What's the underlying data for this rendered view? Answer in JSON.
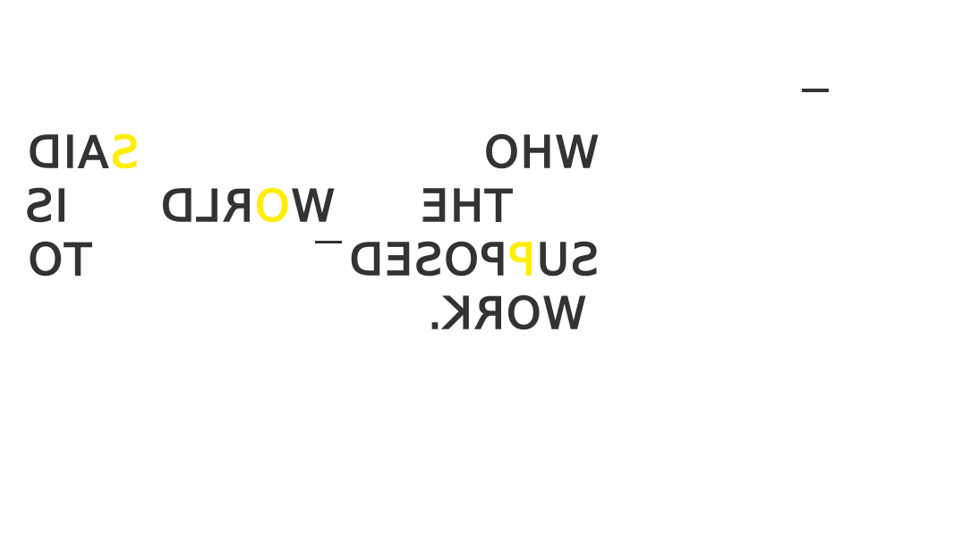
{
  "canvas": {
    "background": "#ffffff",
    "text_color": "#333333",
    "accent_color": "#ffee00",
    "mirrored": true
  },
  "words": [
    {
      "id": "who",
      "pre": "WHO",
      "accent": "",
      "post": ""
    },
    {
      "id": "said",
      "pre": "",
      "accent": "S",
      "post": "AID"
    },
    {
      "id": "the",
      "pre": "THE",
      "accent": "",
      "post": ""
    },
    {
      "id": "world",
      "pre": "W",
      "accent": "O",
      "post": "RLD"
    },
    {
      "id": "is",
      "pre": "IS",
      "accent": "",
      "post": ""
    },
    {
      "id": "supposed",
      "pre": "SU",
      "accent": "P",
      "post": "POSED"
    },
    {
      "id": "to",
      "pre": "TO",
      "accent": "",
      "post": ""
    },
    {
      "id": "work",
      "pre": "WORK.",
      "accent": "",
      "post": ""
    }
  ]
}
